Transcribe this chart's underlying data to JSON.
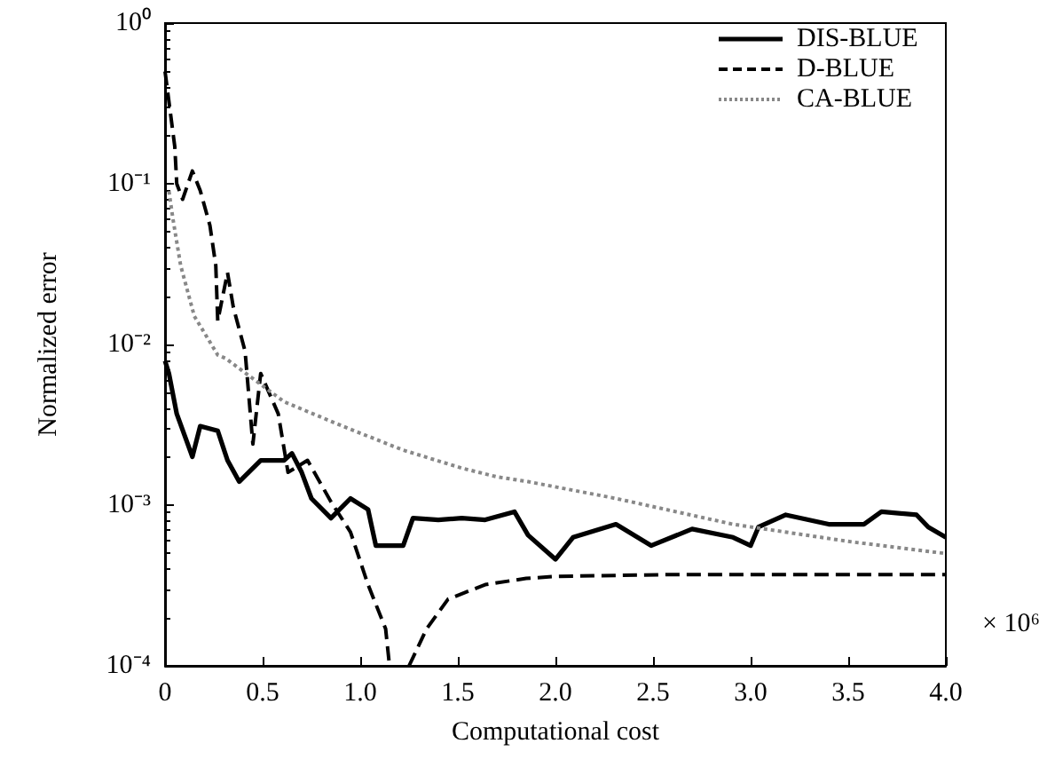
{
  "chart_data": {
    "type": "line",
    "xlabel": "Computational cost",
    "ylabel": "Normalized error",
    "annotations": [
      "× 10⁶"
    ],
    "log": "y",
    "grid": false,
    "legend": "top right",
    "marker": "none",
    "xlim": [
      0,
      4
    ],
    "xticks": [
      0,
      0.5,
      {
        "value": 1,
        "label": "1.0"
      },
      1.5,
      {
        "value": 2,
        "label": "2.0"
      },
      2.5,
      {
        "value": 3,
        "label": "3.0"
      },
      3.5,
      {
        "value": 4,
        "label": "4.0"
      }
    ],
    "ylim": [
      0.0001,
      1
    ],
    "yticks": [
      {
        "value": 0.0001,
        "label": "10⁻⁴"
      },
      {
        "value": 0.001,
        "label": "10⁻³"
      },
      {
        "value": 0.01,
        "label": "10⁻²"
      },
      {
        "value": 0.1,
        "label": "10⁻¹"
      },
      {
        "value": 1,
        "label": "10⁰"
      }
    ],
    "series": [
      {
        "name": "DIS-BLUE",
        "color": "#000000",
        "line_style": "solid",
        "x": [
          0,
          0.02,
          0.06,
          0.14,
          0.18,
          0.27,
          0.32,
          0.38,
          0.49,
          0.61,
          0.65,
          0.7,
          0.75,
          0.85,
          0.95,
          1.04,
          1.08,
          1.22,
          1.27,
          1.4,
          1.52,
          1.64,
          1.79,
          1.86,
          2.0,
          2.09,
          2.31,
          2.49,
          2.7,
          2.91,
          3.0,
          3.04,
          3.18,
          3.4,
          3.58,
          3.67,
          3.85,
          3.91,
          4.0
        ],
        "values": [
          0.0079,
          0.0066,
          0.0037,
          0.002,
          0.0031,
          0.0029,
          0.0019,
          0.0014,
          0.0019,
          0.0019,
          0.0021,
          0.0016,
          0.0011,
          0.00083,
          0.0011,
          0.00094,
          0.00056,
          0.00056,
          0.00083,
          0.00081,
          0.00083,
          0.00081,
          0.00091,
          0.00065,
          0.00046,
          0.00063,
          0.00076,
          0.00056,
          0.00071,
          0.00063,
          0.00056,
          0.00073,
          0.00087,
          0.00076,
          0.00076,
          0.00091,
          0.00087,
          0.00073,
          0.00063
        ]
      },
      {
        "name": "D-BLUE",
        "color": "#000000",
        "line_style": "dashed",
        "x": [
          0,
          0.05,
          0.06,
          0.09,
          0.14,
          0.18,
          0.23,
          0.26,
          0.27,
          0.32,
          0.35,
          0.41,
          0.45,
          0.49,
          0.58,
          0.63,
          0.73,
          0.85,
          0.95,
          1.04,
          1.13,
          1.15,
          1.2,
          1.25,
          1.34,
          1.45,
          1.64,
          1.85,
          2.0,
          2.61,
          4.0
        ],
        "values": [
          0.5,
          0.17,
          0.1,
          0.08,
          0.12,
          0.091,
          0.055,
          0.031,
          0.014,
          0.028,
          0.017,
          0.0091,
          0.0024,
          0.0066,
          0.0037,
          0.0016,
          0.0019,
          0.00105,
          0.00068,
          0.00032,
          0.00017,
          0.0001,
          null,
          0.0001,
          0.00017,
          0.00026,
          0.00032,
          0.00035,
          0.00036,
          0.00037,
          0.00037
        ]
      },
      {
        "name": "CA-BLUE",
        "color": "#888888",
        "line_style": "dotted",
        "x": [
          0.02,
          0.04,
          0.08,
          0.15,
          0.27,
          0.31,
          0.61,
          0.91,
          1.22,
          1.52,
          1.7,
          1.86,
          2.31,
          2.91,
          3.52,
          4.0
        ],
        "values": [
          0.09,
          0.061,
          0.031,
          0.015,
          0.0086,
          0.0082,
          0.0044,
          0.0031,
          0.0022,
          0.0017,
          0.0015,
          0.0014,
          0.0011,
          0.00076,
          0.00059,
          0.0005
        ]
      }
    ]
  }
}
